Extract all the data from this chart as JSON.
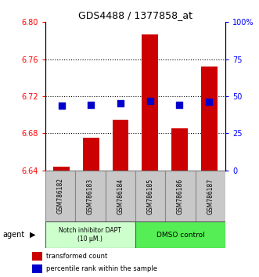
{
  "title": "GDS4488 / 1377858_at",
  "samples": [
    "GSM786182",
    "GSM786183",
    "GSM786184",
    "GSM786185",
    "GSM786186",
    "GSM786187"
  ],
  "red_values": [
    6.644,
    6.675,
    6.695,
    6.787,
    6.685,
    6.752
  ],
  "blue_values": [
    6.71,
    6.711,
    6.712,
    6.715,
    6.711,
    6.714
  ],
  "ylim_left": [
    6.64,
    6.8
  ],
  "ylim_right": [
    0,
    100
  ],
  "yticks_left": [
    6.64,
    6.68,
    6.72,
    6.76,
    6.8
  ],
  "yticks_right": [
    0,
    25,
    50,
    75,
    100
  ],
  "ytick_labels_right": [
    "0",
    "25",
    "50",
    "75",
    "100%"
  ],
  "grid_lines": [
    6.68,
    6.72,
    6.76
  ],
  "bar_bottom": 6.64,
  "blue_size": 28,
  "group1_label": "Notch inhibitor DAPT\n(10 μM.)",
  "group2_label": "DMSO control",
  "group1_color": "#ccffcc",
  "group2_color": "#55ee55",
  "group1_indices": [
    0,
    1,
    2
  ],
  "group2_indices": [
    3,
    4,
    5
  ],
  "red_color": "#cc0000",
  "blue_color": "#0000cc",
  "bar_width": 0.55,
  "legend_red_label": "transformed count",
  "legend_blue_label": "percentile rank within the sample",
  "agent_label": "agent",
  "left_tick_color": "red",
  "right_tick_color": "blue",
  "box_facecolor": "#c8c8c8",
  "box_edgecolor": "#888888"
}
